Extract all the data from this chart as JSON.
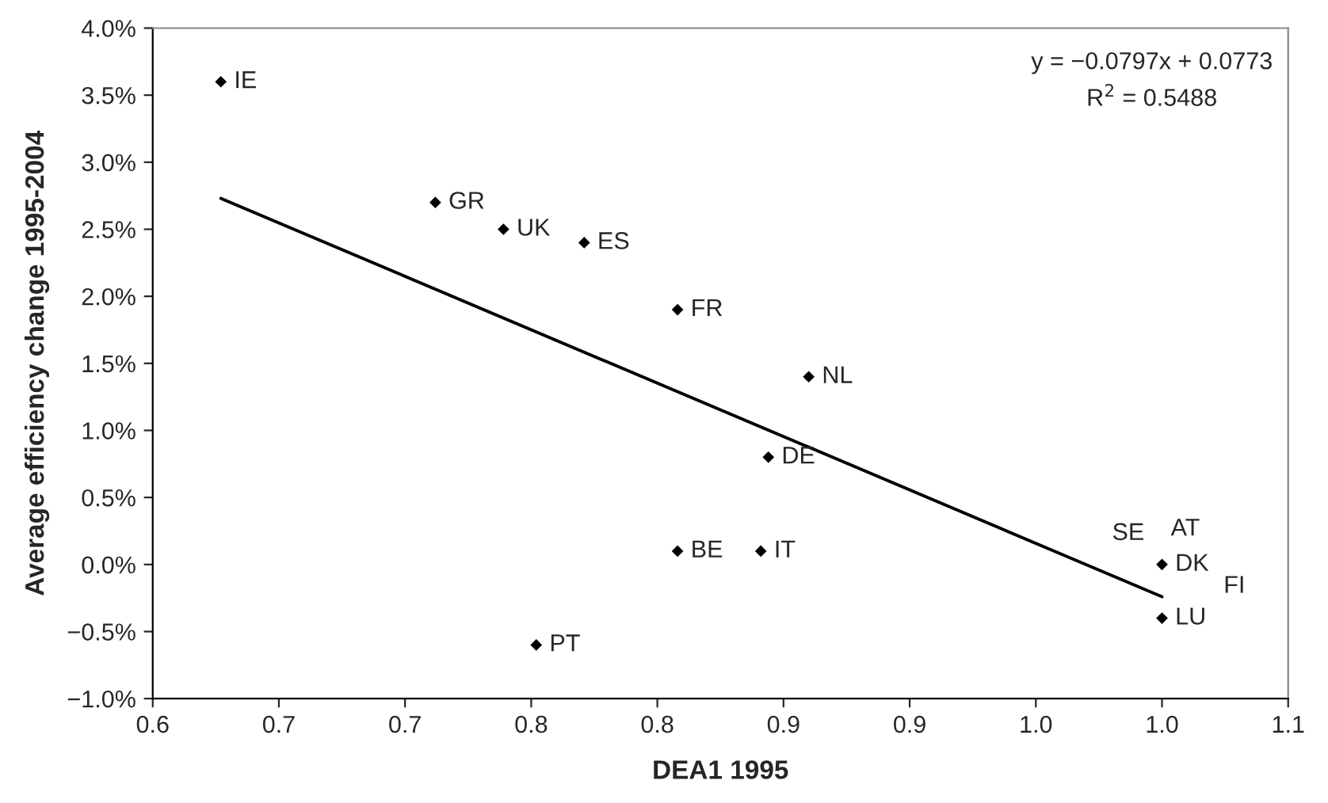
{
  "chart_data": {
    "type": "scatter",
    "xlabel": "DEA1 1995",
    "ylabel": "Average efficiency change 1995-2004",
    "series": [
      {
        "color": "#000000",
        "marker": "diamond",
        "x": [
          0.627,
          0.712,
          0.739,
          0.771,
          0.808,
          0.86,
          0.844,
          0.808,
          0.841,
          0.752,
          1.0,
          1.0
        ],
        "values": [
          3.6,
          2.7,
          2.5,
          2.4,
          1.9,
          1.4,
          0.8,
          0.1,
          0.1,
          -0.6,
          0.0,
          -0.4
        ]
      },
      {
        "type": "line",
        "color": "#000000",
        "x": [
          0.627,
          1.0
        ],
        "values": [
          2.73,
          -0.24
        ]
      }
    ],
    "annotations": [
      {
        "text": "IE",
        "x": 0.627,
        "y": 3.6
      },
      {
        "text": "GR",
        "x": 0.712,
        "y": 2.7
      },
      {
        "text": "UK",
        "x": 0.739,
        "y": 2.5
      },
      {
        "text": "ES",
        "x": 0.771,
        "y": 2.4
      },
      {
        "text": "FR",
        "x": 0.808,
        "y": 1.9
      },
      {
        "text": "NL",
        "x": 0.86,
        "y": 1.4
      },
      {
        "text": "DE",
        "x": 0.844,
        "y": 0.8
      },
      {
        "text": "BE",
        "x": 0.808,
        "y": 0.1
      },
      {
        "text": "IT",
        "x": 0.841,
        "y": 0.1
      },
      {
        "text": "PT",
        "x": 0.752,
        "y": -0.6
      },
      {
        "text": "DK",
        "x": 1.0,
        "y": 0.0
      },
      {
        "text": "SE",
        "x": 1.0,
        "y": 0.0
      },
      {
        "text": "AT",
        "x": 1.0,
        "y": 0.0
      },
      {
        "text": "FI",
        "x": 1.0,
        "y": 0.0
      },
      {
        "text": "LU",
        "x": 1.0,
        "y": -0.4
      },
      "y = −0.0797x + 0.0773",
      "R$^{2}$ = 0.5488"
    ],
    "xlim": [
      0.6,
      1.05
    ],
    "xticks": [
      {
        "value": 0.6,
        "label": "0.6"
      },
      {
        "value": 0.65,
        "label": "0.7"
      },
      {
        "value": 0.7,
        "label": "0.7"
      },
      {
        "value": 0.75,
        "label": "0.8"
      },
      {
        "value": 0.8,
        "label": "0.8"
      },
      {
        "value": 0.85,
        "label": "0.9"
      },
      {
        "value": 0.9,
        "label": "0.9"
      },
      {
        "value": 0.95,
        "label": "1.0"
      },
      {
        "value": 1.0,
        "label": "1.0"
      },
      {
        "value": 1.05,
        "label": "1.1"
      }
    ],
    "ylim": [
      -1.0,
      4.0
    ],
    "yticks": [
      {
        "value": -1.0,
        "label": "−1.0%"
      },
      {
        "value": -0.5,
        "label": "−0.5%"
      },
      {
        "value": 0.0,
        "label": "0.0%"
      },
      {
        "value": 0.5,
        "label": "0.5%"
      },
      {
        "value": 1.0,
        "label": "1.0%"
      },
      {
        "value": 1.5,
        "label": "1.5%"
      },
      {
        "value": 2.0,
        "label": "2.0%"
      },
      {
        "value": 2.5,
        "label": "2.5%"
      },
      {
        "value": 3.0,
        "label": "3.0%"
      },
      {
        "value": 3.5,
        "label": "3.5%"
      },
      {
        "value": 4.0,
        "label": "4.0%"
      }
    ],
    "grid": false
  }
}
